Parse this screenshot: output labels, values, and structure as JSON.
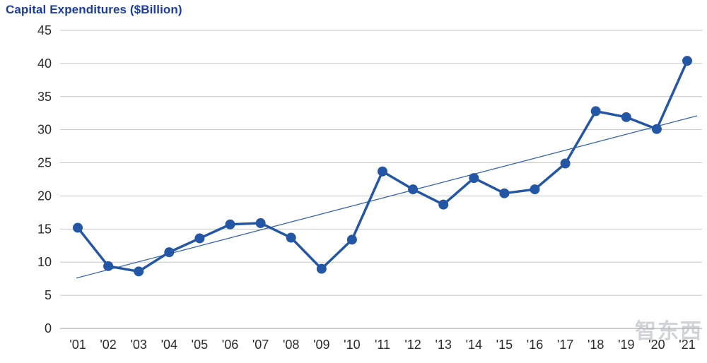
{
  "watermark": "智东西",
  "chart_data": {
    "type": "line",
    "title": "Capital Expenditures ($Billion)",
    "xlabel": "",
    "ylabel": "",
    "x": [
      "'01",
      "'02",
      "'03",
      "'04",
      "'05",
      "'06",
      "'07",
      "'08",
      "'09",
      "'10",
      "'11",
      "'12",
      "'13",
      "'14",
      "'15",
      "'16",
      "'17",
      "'18",
      "'19",
      "'20",
      "'21"
    ],
    "series": [
      {
        "name": "Capital Expenditures",
        "values": [
          15.2,
          9.4,
          8.6,
          11.5,
          13.6,
          15.7,
          15.9,
          13.7,
          9.0,
          13.4,
          23.7,
          21.0,
          18.7,
          22.7,
          20.4,
          21.0,
          24.9,
          32.8,
          31.9,
          30.1,
          40.4
        ]
      }
    ],
    "trendline": {
      "start_value": 7.6,
      "end_value": 32.1
    },
    "ylim": [
      0,
      45
    ],
    "ytick_step": 5,
    "yticks": [
      0,
      5,
      10,
      15,
      20,
      25,
      30,
      35,
      40,
      45
    ],
    "grid": "horizontal",
    "legend": "none",
    "style": {
      "line_color": "#2456a6",
      "marker_color": "#2456a6",
      "trend_color": "#3a66b0",
      "title_color": "#1d3ca2",
      "grid_color": "#c6c6c6",
      "axis_color": "#9a9a9a",
      "tick_text_color": "#2b2b2b"
    }
  }
}
